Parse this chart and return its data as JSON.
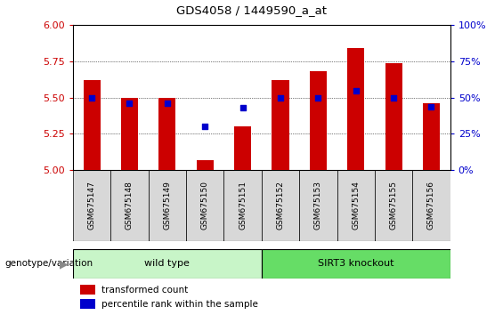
{
  "title": "GDS4058 / 1449590_a_at",
  "samples": [
    "GSM675147",
    "GSM675148",
    "GSM675149",
    "GSM675150",
    "GSM675151",
    "GSM675152",
    "GSM675153",
    "GSM675154",
    "GSM675155",
    "GSM675156"
  ],
  "red_values": [
    5.62,
    5.5,
    5.5,
    5.07,
    5.3,
    5.62,
    5.68,
    5.84,
    5.74,
    5.46
  ],
  "blue_values_pct": [
    50,
    46,
    46,
    30,
    43,
    50,
    50,
    55,
    50,
    44
  ],
  "ylim_left": [
    5.0,
    6.0
  ],
  "ylim_right": [
    0,
    100
  ],
  "yticks_left": [
    5.0,
    5.25,
    5.5,
    5.75,
    6.0
  ],
  "yticks_right": [
    0,
    25,
    50,
    75,
    100
  ],
  "groups": [
    {
      "label": "wild type",
      "start": 0,
      "end": 5,
      "color": "#c8f5c8"
    },
    {
      "label": "SIRT3 knockout",
      "start": 5,
      "end": 10,
      "color": "#66dd66"
    }
  ],
  "genotype_label": "genotype/variation",
  "bar_color": "#cc0000",
  "dot_color": "#0000cc",
  "bar_width": 0.45,
  "background_color": "#ffffff",
  "plot_bg_color": "#ffffff",
  "tick_label_color_left": "#cc0000",
  "tick_label_color_right": "#0000cc",
  "legend_labels": [
    "transformed count",
    "percentile rank within the sample"
  ],
  "legend_colors": [
    "#cc0000",
    "#0000cc"
  ]
}
